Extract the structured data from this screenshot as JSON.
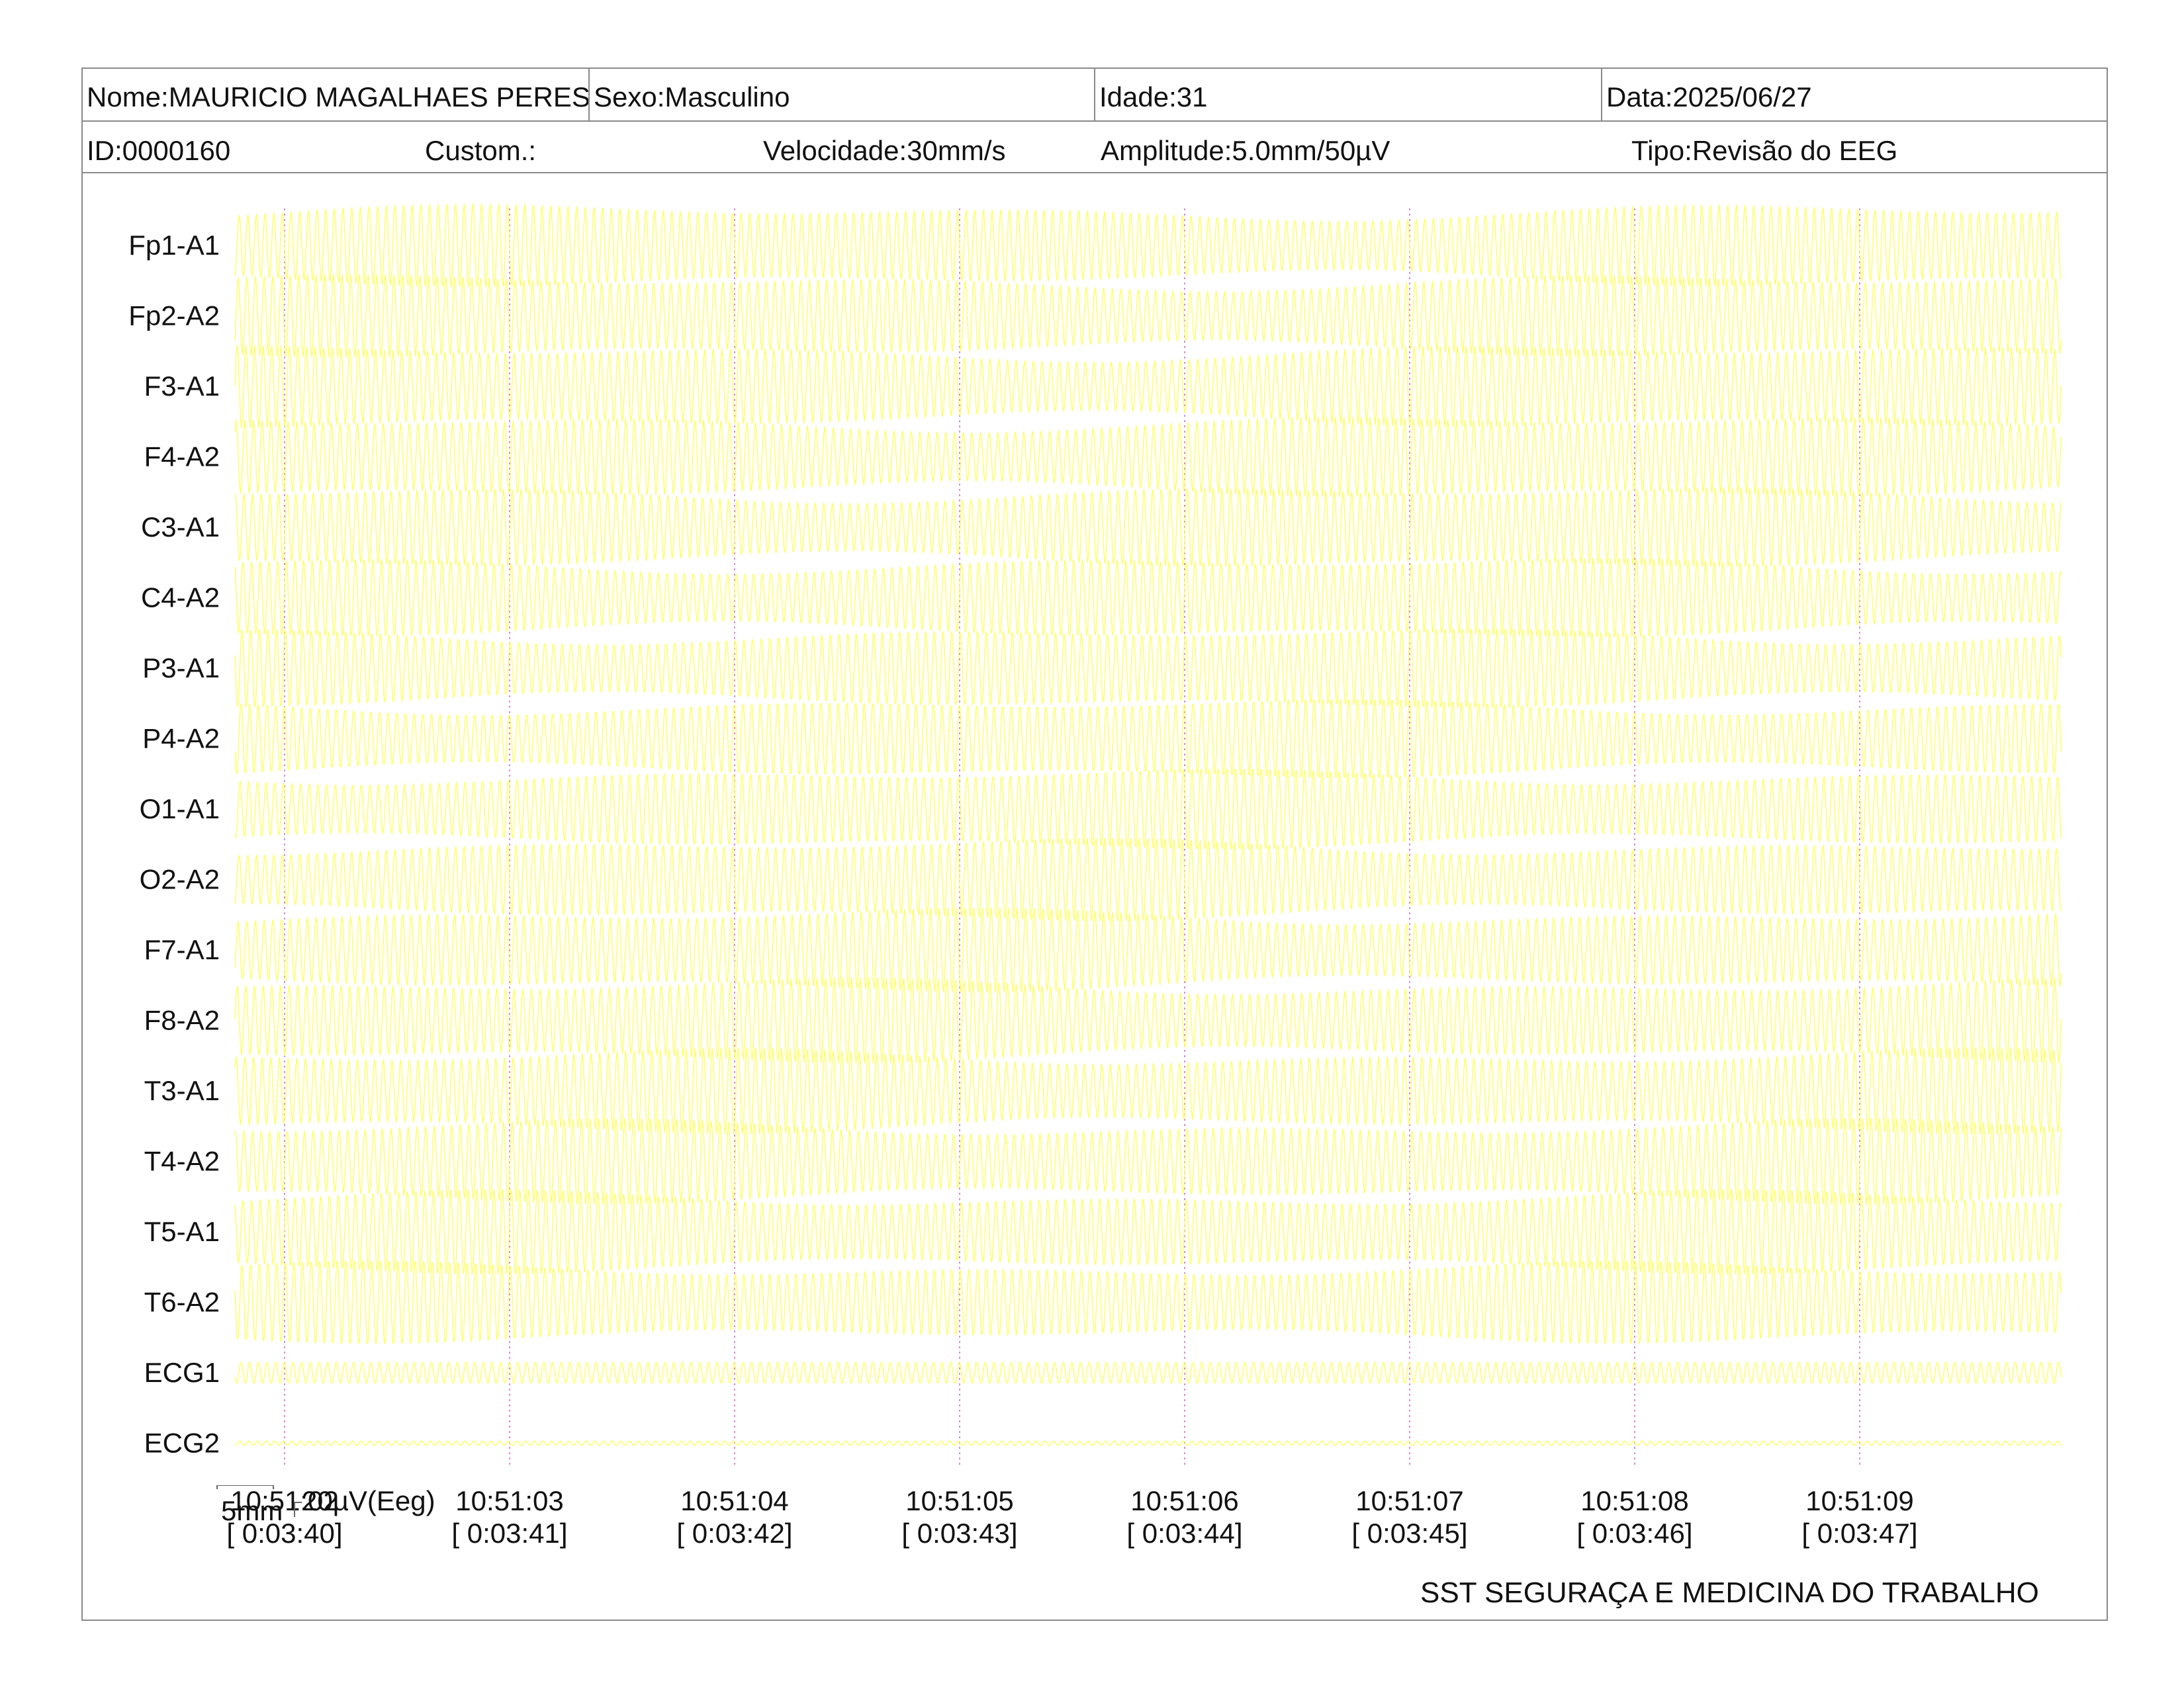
{
  "header": {
    "nome": "Nome:MAURICIO MAGALHAES PERES",
    "sexo": "Sexo:Masculino",
    "idade": "Idade:31",
    "data": "Data:2025/06/27",
    "id": "ID:0000160",
    "custom": "Custom.:",
    "velocidade": "Velocidade:30mm/s",
    "amplitude": "Amplitude:5.0mm/50µV",
    "tipo": "Tipo:Revisão do EEG"
  },
  "scale": {
    "time_label": "5mm",
    "amp_label": "20µV(Eeg)"
  },
  "footer": {
    "org": "SST SEGURAÇA E MEDICINA DO TRABALHO"
  },
  "colors": {
    "trace": "#ffff55",
    "marker": "#d070d0",
    "border": "#8a8a8a"
  },
  "chart_data": {
    "type": "line",
    "title": "",
    "channels": [
      "Fp1-A1",
      "Fp2-A2",
      "F3-A1",
      "F4-A2",
      "C3-A1",
      "C4-A2",
      "P3-A1",
      "P4-A2",
      "O1-A1",
      "O2-A2",
      "F7-A1",
      "F8-A2",
      "T3-A1",
      "T4-A2",
      "T5-A1",
      "T6-A2",
      "ECG1",
      "ECG2"
    ],
    "time_ticks": [
      {
        "time": "10:51:02",
        "elapsed": "[ 0:03:40]"
      },
      {
        "time": "10:51:03",
        "elapsed": "[ 0:03:41]"
      },
      {
        "time": "10:51:04",
        "elapsed": "[ 0:03:42]"
      },
      {
        "time": "10:51:05",
        "elapsed": "[ 0:03:43]"
      },
      {
        "time": "10:51:06",
        "elapsed": "[ 0:03:44]"
      },
      {
        "time": "10:51:07",
        "elapsed": "[ 0:03:45]"
      },
      {
        "time": "10:51:08",
        "elapsed": "[ 0:03:46]"
      },
      {
        "time": "10:51:09",
        "elapsed": "[ 0:03:47]"
      }
    ],
    "x_range_seconds": [
      -0.22,
      7.9
    ],
    "grid": "vertical dotted markers at each second",
    "series_profile": {
      "eeg_cycles_per_second": 26,
      "eeg_relative_amplitude": 1.0,
      "ecg1_relative_amplitude": 0.25,
      "ecg2_relative_amplitude": 0.05
    }
  }
}
